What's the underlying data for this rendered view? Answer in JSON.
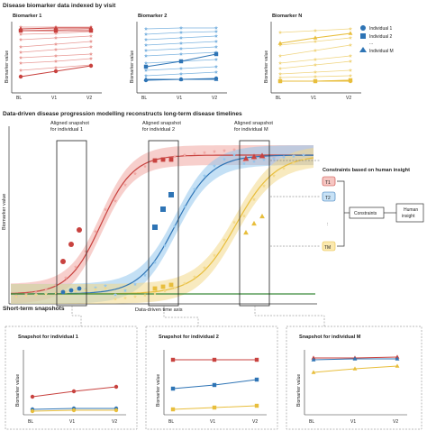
{
  "sections": {
    "top": "Disease biomarker data indexed by visit",
    "middle": "Data-driven disease progression modelling reconstructs long-term disease timelines",
    "bottom": "Short-term snapshots"
  },
  "panels": {
    "p1_title": "Biomarker 1",
    "p2_title": "Biomarker 2",
    "p3_title": "Biomarker N",
    "ylabel": "Biomarker value",
    "visits": [
      "BL",
      "V1",
      "V2"
    ]
  },
  "legend": {
    "ind1": "Individual 1",
    "ind2": "Individual 2",
    "dots": "...",
    "indM": "Individual M"
  },
  "main": {
    "ylabel": "Biomarker value",
    "xlabel": "Data-driven time axis",
    "snap1": [
      "Aligned snapshot",
      "for individual 1"
    ],
    "snap2": [
      "Aligned snapshot",
      "for individual 2"
    ],
    "snapM": [
      "Aligned snapshot",
      "for individual M"
    ]
  },
  "constraints": {
    "title": "Constraints based on human insight",
    "box": "Constraints",
    "human": [
      "Human",
      "insight"
    ],
    "t1": "T1",
    "t2": "T2",
    "tdots": ":",
    "tm": "TM"
  },
  "snapshots": {
    "s1": "Snapshot for individual 1",
    "s2": "Snapshot for individual 2",
    "sm": "Snapshot for individual M",
    "ylabel": "Biomarker value",
    "visits": [
      "BL",
      "V1",
      "V2"
    ]
  },
  "colors": {
    "red": "#c8423f",
    "blue": "#2e74b5",
    "yellow": "#e8be3c",
    "green": "#3a8a3a"
  }
}
